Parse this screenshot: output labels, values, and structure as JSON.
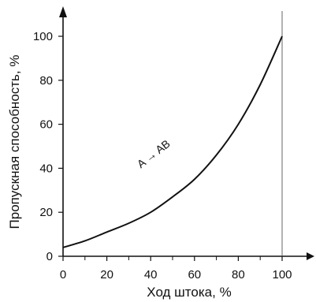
{
  "chart_data": {
    "type": "line",
    "xlabel": "Ход штока, %",
    "ylabel": "Пропускная способность, %",
    "xlim": [
      0,
      100
    ],
    "ylim": [
      0,
      100
    ],
    "x_ticks": [
      0,
      20,
      40,
      60,
      80,
      100
    ],
    "y_ticks": [
      0,
      20,
      40,
      60,
      80,
      100
    ],
    "grid": false,
    "reference_lines": [
      {
        "axis": "x",
        "value": 100
      }
    ],
    "series": [
      {
        "name": "A → AB",
        "x": [
          0,
          10,
          20,
          30,
          40,
          50,
          60,
          70,
          80,
          90,
          100
        ],
        "y": [
          4,
          7,
          11,
          15,
          20,
          27,
          35,
          46,
          60,
          78,
          100
        ]
      }
    ],
    "annotations": [
      {
        "text": "A → AB",
        "x": 60,
        "y": 37
      }
    ]
  }
}
